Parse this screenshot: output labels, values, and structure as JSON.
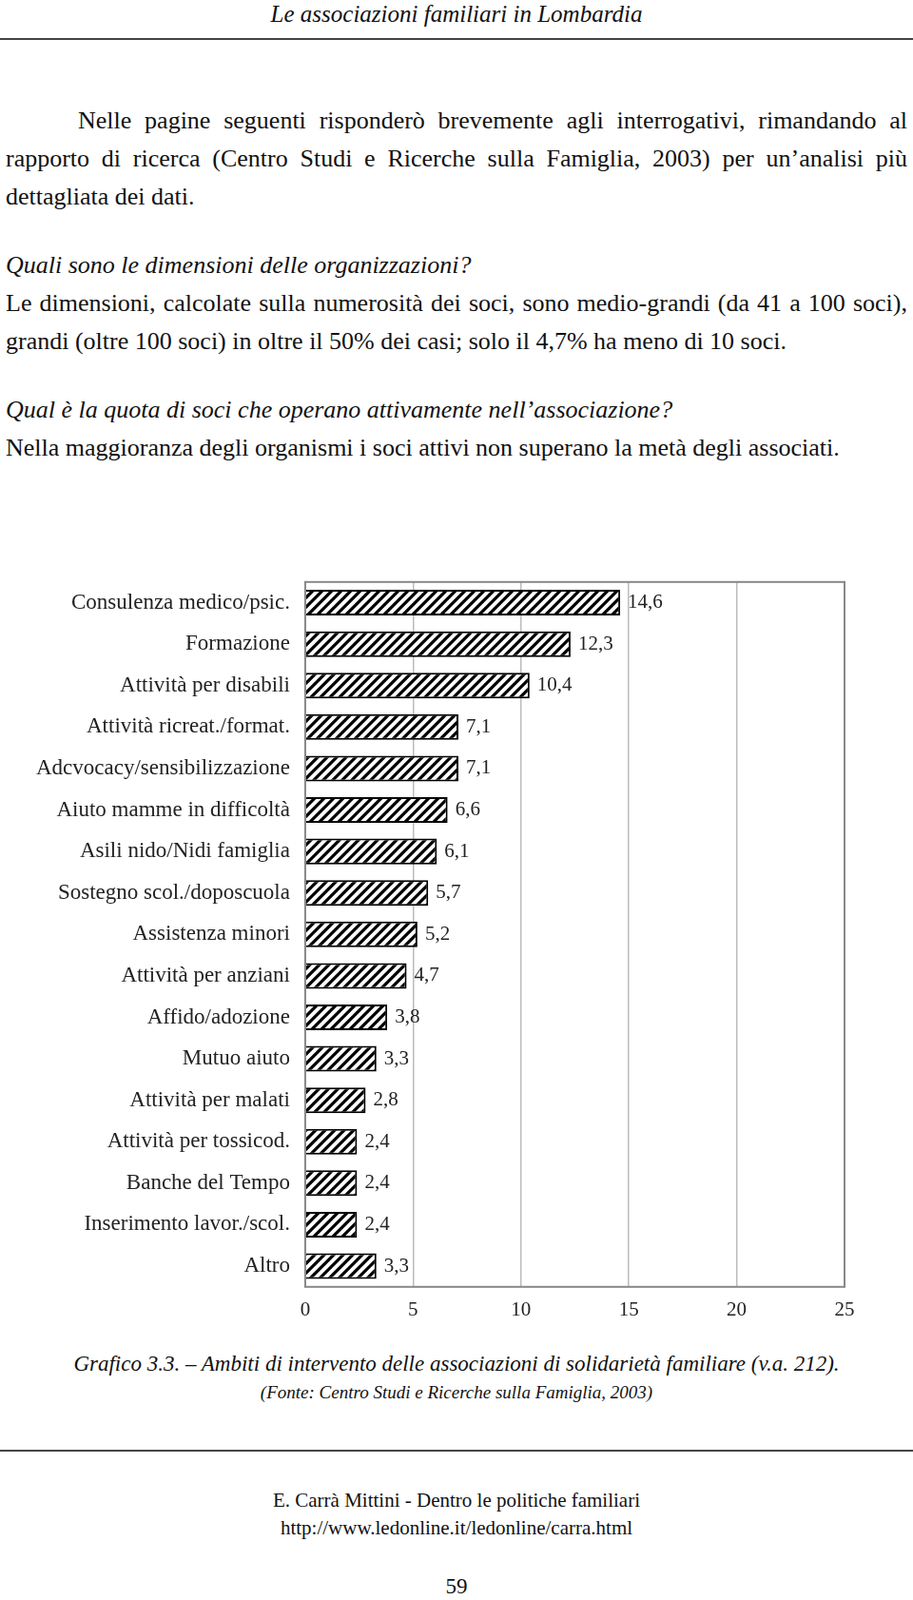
{
  "header": "Le associazioni familiari in Lombardia",
  "intro": "Nelle pagine seguenti risponderò brevemente agli interrogativi, rimandando al rapporto di ricerca (Centro Studi e Ricerche sulla Famiglia, 2003) per un’analisi più dettagliata dei dati.",
  "sections": [
    {
      "question": "Quali sono le dimensioni delle organizzazioni?",
      "answer": "Le dimensioni, calcolate sulla numerosità dei soci, sono medio-grandi (da 41 a 100 soci), grandi (oltre 100 soci) in oltre il 50% dei casi; solo il 4,7% ha meno di 10 soci."
    },
    {
      "question": "Qual è la quota di soci che operano attivamente nell’associazione?",
      "answer": "Nella maggioranza degli organismi i soci attivi non superano la metà degli associati."
    }
  ],
  "chart_data": {
    "type": "bar",
    "orientation": "horizontal",
    "categories": [
      "Consulenza medico/psic.",
      "Formazione",
      "Attività per disabili",
      "Attività ricreat./format.",
      "Adcvocacy/sensibilizzazione",
      "Aiuto mamme in difficoltà",
      "Asili nido/Nidi famiglia",
      "Sostegno scol./doposcuola",
      "Assistenza minori",
      "Attività per anziani",
      "Affido/adozione",
      "Mutuo aiuto",
      "Attività per malati",
      "Attività per tossicod.",
      "Banche del Tempo",
      "Inserimento lavor./scol.",
      "Altro"
    ],
    "values": [
      14.6,
      12.3,
      10.4,
      7.1,
      7.1,
      6.6,
      6.1,
      5.7,
      5.2,
      4.7,
      3.8,
      3.3,
      2.8,
      2.4,
      2.4,
      2.4,
      3.3
    ],
    "value_labels": [
      "14,6",
      "12,3",
      "10,4",
      "7,1",
      "7,1",
      "6,6",
      "6,1",
      "5,7",
      "5,2",
      "4,7",
      "3,8",
      "3,3",
      "2,8",
      "2,4",
      "2,4",
      "2,4",
      "3,3"
    ],
    "color": "#000000",
    "xlim": [
      0,
      25
    ],
    "xticks": [
      0,
      5,
      10,
      15,
      20,
      25
    ],
    "grid": true,
    "data_labels": true
  },
  "caption": "Grafico 3.3. – Ambiti di intervento delle associazioni di solidarietà familiare (v.a. 212).",
  "source": "(Fonte: Centro Studi e Ricerche sulla Famiglia, 2003)",
  "footer": [
    "E. Carrà Mittini - Dentro le politiche familiari",
    "http://www.ledonline.it/ledonline/carra.html"
  ],
  "page_number": 59
}
